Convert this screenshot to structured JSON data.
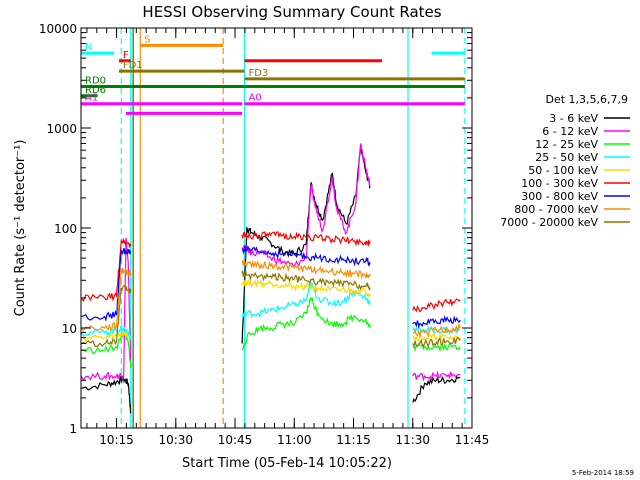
{
  "chart_data": {
    "type": "line",
    "title": "HESSI Observing Summary Count Rates",
    "xlabel": "Start Time (05-Feb-14 10:05:22)",
    "ylabel": "Count Rate (s⁻¹ detector⁻¹)",
    "timestamp": "5-Feb-2014 18:59",
    "y_scale": "log",
    "ylim": [
      1,
      10000
    ],
    "xlim": [
      10.1,
      11.75
    ],
    "x_ticks": [
      {
        "label": "10:15",
        "value": 10.25
      },
      {
        "label": "10:30",
        "value": 10.5
      },
      {
        "label": "10:45",
        "value": 10.75
      },
      {
        "label": "11:00",
        "value": 11.0
      },
      {
        "label": "11:15",
        "value": 11.25
      },
      {
        "label": "11:30",
        "value": 11.5
      },
      {
        "label": "11:45",
        "value": 11.75
      }
    ],
    "y_ticks": [
      {
        "label": "1",
        "value": 1
      },
      {
        "label": "10",
        "value": 10
      },
      {
        "label": "100",
        "value": 100
      },
      {
        "label": "1000",
        "value": 1000
      },
      {
        "label": "10000",
        "value": 10000
      }
    ],
    "legend_title": "Det 1,3,5,6,7,9",
    "legend_position": "right",
    "series": [
      {
        "name": "3 - 6 keV",
        "color": "#000000",
        "points": [
          [
            10.1,
            2.5
          ],
          [
            10.2,
            2.7
          ],
          [
            10.25,
            2.9
          ],
          [
            10.28,
            3.1
          ],
          [
            10.3,
            2.8
          ],
          [
            10.31,
            1.4
          ],
          [
            10.78,
            7
          ],
          [
            10.8,
            100
          ],
          [
            10.82,
            90
          ],
          [
            10.86,
            80
          ],
          [
            10.9,
            72
          ],
          [
            10.95,
            58
          ],
          [
            11.0,
            55
          ],
          [
            11.05,
            68
          ],
          [
            11.07,
            280
          ],
          [
            11.09,
            180
          ],
          [
            11.12,
            120
          ],
          [
            11.16,
            350
          ],
          [
            11.18,
            170
          ],
          [
            11.22,
            110
          ],
          [
            11.26,
            210
          ],
          [
            11.28,
            650
          ],
          [
            11.3,
            380
          ],
          [
            11.32,
            260
          ],
          [
            11.5,
            1.8
          ],
          [
            11.55,
            2.8
          ],
          [
            11.6,
            3.0
          ],
          [
            11.65,
            3.0
          ],
          [
            11.7,
            3.2
          ]
        ]
      },
      {
        "name": "6 - 12 keV",
        "color": "#ff00ff",
        "points": [
          [
            10.1,
            3.3
          ],
          [
            10.2,
            3.3
          ],
          [
            10.25,
            3.3
          ],
          [
            10.28,
            3.4
          ],
          [
            10.29,
            80
          ],
          [
            10.3,
            40
          ],
          [
            10.31,
            4
          ],
          [
            10.78,
            64
          ],
          [
            10.8,
            62
          ],
          [
            10.82,
            56
          ],
          [
            10.86,
            58
          ],
          [
            10.9,
            50
          ],
          [
            10.95,
            46
          ],
          [
            11.0,
            42
          ],
          [
            11.05,
            50
          ],
          [
            11.07,
            260
          ],
          [
            11.09,
            160
          ],
          [
            11.12,
            95
          ],
          [
            11.16,
            320
          ],
          [
            11.18,
            150
          ],
          [
            11.22,
            90
          ],
          [
            11.26,
            180
          ],
          [
            11.28,
            700
          ],
          [
            11.3,
            420
          ],
          [
            11.32,
            260
          ],
          [
            11.5,
            3.3
          ],
          [
            11.55,
            3.3
          ],
          [
            11.6,
            3.3
          ],
          [
            11.65,
            3.4
          ],
          [
            11.7,
            3.4
          ]
        ]
      },
      {
        "name": "12 - 25 keV",
        "color": "#00ff00",
        "points": [
          [
            10.1,
            6
          ],
          [
            10.2,
            6
          ],
          [
            10.25,
            6.5
          ],
          [
            10.28,
            9
          ],
          [
            10.3,
            7
          ],
          [
            10.31,
            4
          ],
          [
            10.78,
            6
          ],
          [
            10.8,
            8
          ],
          [
            10.85,
            10
          ],
          [
            10.9,
            10
          ],
          [
            10.95,
            11
          ],
          [
            11.0,
            11
          ],
          [
            11.05,
            14
          ],
          [
            11.07,
            20
          ],
          [
            11.1,
            14
          ],
          [
            11.15,
            11
          ],
          [
            11.2,
            11
          ],
          [
            11.25,
            13
          ],
          [
            11.3,
            12
          ],
          [
            11.32,
            10
          ],
          [
            11.5,
            6.5
          ],
          [
            11.55,
            6.5
          ],
          [
            11.6,
            6.5
          ],
          [
            11.65,
            6.5
          ],
          [
            11.7,
            6.5
          ]
        ]
      },
      {
        "name": "25 - 50 keV",
        "color": "#00ffff",
        "points": [
          [
            10.1,
            9
          ],
          [
            10.2,
            9
          ],
          [
            10.25,
            9.5
          ],
          [
            10.28,
            10
          ],
          [
            10.3,
            9
          ],
          [
            10.31,
            8
          ],
          [
            10.78,
            13
          ],
          [
            10.8,
            14
          ],
          [
            10.85,
            14
          ],
          [
            10.9,
            15
          ],
          [
            10.95,
            16
          ],
          [
            11.0,
            17
          ],
          [
            11.05,
            19
          ],
          [
            11.07,
            28
          ],
          [
            11.1,
            20
          ],
          [
            11.15,
            18
          ],
          [
            11.2,
            18
          ],
          [
            11.25,
            23
          ],
          [
            11.3,
            20
          ],
          [
            11.32,
            18
          ],
          [
            11.5,
            9.5
          ],
          [
            11.55,
            9.5
          ],
          [
            11.6,
            9.5
          ],
          [
            11.65,
            9.5
          ],
          [
            11.7,
            9.5
          ]
        ]
      },
      {
        "name": "50 - 100 keV",
        "color": "#ffd700",
        "points": [
          [
            10.1,
            8
          ],
          [
            10.2,
            8
          ],
          [
            10.25,
            8.3
          ],
          [
            10.28,
            9
          ],
          [
            10.3,
            8
          ],
          [
            10.78,
            28
          ],
          [
            10.8,
            28
          ],
          [
            10.85,
            28
          ],
          [
            10.9,
            28
          ],
          [
            10.95,
            27
          ],
          [
            11.0,
            26
          ],
          [
            11.05,
            26
          ],
          [
            11.1,
            25
          ],
          [
            11.15,
            24
          ],
          [
            11.2,
            24
          ],
          [
            11.25,
            24
          ],
          [
            11.3,
            23
          ],
          [
            11.32,
            22
          ],
          [
            11.5,
            8
          ],
          [
            11.55,
            8
          ],
          [
            11.6,
            8
          ],
          [
            11.65,
            8
          ],
          [
            11.7,
            8
          ]
        ]
      },
      {
        "name": "100 - 300 keV",
        "color": "#ff0000",
        "points": [
          [
            10.1,
            20
          ],
          [
            10.2,
            20
          ],
          [
            10.25,
            21
          ],
          [
            10.27,
            75
          ],
          [
            10.3,
            70
          ],
          [
            10.31,
            66
          ],
          [
            10.78,
            85
          ],
          [
            10.8,
            84
          ],
          [
            10.85,
            84
          ],
          [
            10.9,
            85
          ],
          [
            10.95,
            84
          ],
          [
            11.0,
            82
          ],
          [
            11.05,
            81
          ],
          [
            11.1,
            80
          ],
          [
            11.15,
            78
          ],
          [
            11.2,
            76
          ],
          [
            11.25,
            74
          ],
          [
            11.3,
            72
          ],
          [
            11.32,
            70
          ],
          [
            11.5,
            15
          ],
          [
            11.55,
            16
          ],
          [
            11.6,
            17
          ],
          [
            11.65,
            18
          ],
          [
            11.7,
            19
          ]
        ]
      },
      {
        "name": "300 - 800 keV",
        "color": "#0000ff",
        "points": [
          [
            10.1,
            13
          ],
          [
            10.2,
            13
          ],
          [
            10.25,
            13.5
          ],
          [
            10.27,
            60
          ],
          [
            10.3,
            58
          ],
          [
            10.31,
            56
          ],
          [
            10.78,
            62
          ],
          [
            10.8,
            60
          ],
          [
            10.85,
            58
          ],
          [
            10.9,
            56
          ],
          [
            10.95,
            55
          ],
          [
            11.0,
            54
          ],
          [
            11.05,
            52
          ],
          [
            11.1,
            50
          ],
          [
            11.15,
            49
          ],
          [
            11.2,
            48
          ],
          [
            11.25,
            47
          ],
          [
            11.3,
            46
          ],
          [
            11.32,
            45
          ],
          [
            11.5,
            11
          ],
          [
            11.55,
            11
          ],
          [
            11.6,
            11.5
          ],
          [
            11.65,
            12
          ],
          [
            11.7,
            12
          ]
        ]
      },
      {
        "name": "800 - 7000 keV",
        "color": "#ff8c00",
        "points": [
          [
            10.1,
            10
          ],
          [
            10.2,
            10
          ],
          [
            10.25,
            10.5
          ],
          [
            10.27,
            38
          ],
          [
            10.3,
            36
          ],
          [
            10.31,
            35
          ],
          [
            10.78,
            45
          ],
          [
            10.8,
            44
          ],
          [
            10.85,
            43
          ],
          [
            10.9,
            42
          ],
          [
            10.95,
            41
          ],
          [
            11.0,
            40
          ],
          [
            11.05,
            39
          ],
          [
            11.1,
            38
          ],
          [
            11.15,
            37
          ],
          [
            11.2,
            36
          ],
          [
            11.25,
            35
          ],
          [
            11.3,
            34
          ],
          [
            11.32,
            33
          ],
          [
            11.5,
            9
          ],
          [
            11.55,
            9
          ],
          [
            11.6,
            9.5
          ],
          [
            11.65,
            9.5
          ],
          [
            11.7,
            10
          ]
        ]
      },
      {
        "name": "7000 - 20000 keV",
        "color": "#8b7500",
        "points": [
          [
            10.1,
            7
          ],
          [
            10.2,
            7
          ],
          [
            10.25,
            7.3
          ],
          [
            10.27,
            25
          ],
          [
            10.3,
            24
          ],
          [
            10.31,
            23
          ],
          [
            10.78,
            35
          ],
          [
            10.8,
            34
          ],
          [
            10.85,
            33
          ],
          [
            10.9,
            33
          ],
          [
            10.95,
            32
          ],
          [
            11.0,
            31
          ],
          [
            11.05,
            30
          ],
          [
            11.1,
            29
          ],
          [
            11.15,
            28
          ],
          [
            11.2,
            28
          ],
          [
            11.25,
            27
          ],
          [
            11.3,
            26
          ],
          [
            11.32,
            25
          ],
          [
            11.5,
            7
          ],
          [
            11.55,
            7
          ],
          [
            11.6,
            7.2
          ],
          [
            11.65,
            7.4
          ],
          [
            11.7,
            7.5
          ]
        ]
      }
    ],
    "flag_bars": [
      {
        "label": "S",
        "color": "#ff8c00",
        "x0": 10.35,
        "x1": 10.7,
        "y": 6700
      },
      {
        "label": "N",
        "color": "#00ffff",
        "x0": 10.1,
        "x1": 10.24,
        "y": 5600
      },
      {
        "label": "N",
        "color": "#00ffff",
        "x0": 11.58,
        "x1": 11.72,
        "y": 5600
      },
      {
        "label": "F",
        "color": "#ff0000",
        "x0": 10.26,
        "x1": 10.31,
        "y": 4700
      },
      {
        "label": "F",
        "color": "#ff0000",
        "x0": 10.79,
        "x1": 11.37,
        "y": 4700
      },
      {
        "label": "FD1",
        "color": "#8b7500",
        "x0": 10.26,
        "x1": 10.79,
        "y": 3700
      },
      {
        "label": "FD3",
        "color": "#8b7500",
        "x0": 10.79,
        "x1": 11.72,
        "y": 3100
      },
      {
        "label": "RD0",
        "color": "#008000",
        "x0": 10.1,
        "x1": 11.72,
        "y": 2600
      },
      {
        "label": "RD6",
        "color": "#008000",
        "x0": 10.1,
        "x1": 10.17,
        "y": 2100
      },
      {
        "label": "A0",
        "color": "#ff00ff",
        "x0": 10.79,
        "x1": 11.72,
        "y": 1750
      },
      {
        "label": "A1",
        "color": "#ff00ff",
        "x0": 10.1,
        "x1": 10.78,
        "y": 1750
      },
      {
        "label": "A1",
        "color": "#ff00ff",
        "x0": 10.29,
        "x1": 10.78,
        "y": 1400
      }
    ],
    "vertical_lines": [
      {
        "x": 10.27,
        "color": "#00ffff",
        "dash": true
      },
      {
        "x": 10.31,
        "color": "#00ffff",
        "dash": false
      },
      {
        "x": 10.32,
        "color": "#008000",
        "dash": false
      },
      {
        "x": 10.35,
        "color": "#ff8c00",
        "dash": false
      },
      {
        "x": 10.7,
        "color": "#ff8c00",
        "dash": true
      },
      {
        "x": 10.79,
        "color": "#00ffff",
        "dash": false
      },
      {
        "x": 11.48,
        "color": "#00ffff",
        "dash": false
      },
      {
        "x": 11.72,
        "color": "#00ffff",
        "dash": true
      }
    ]
  }
}
